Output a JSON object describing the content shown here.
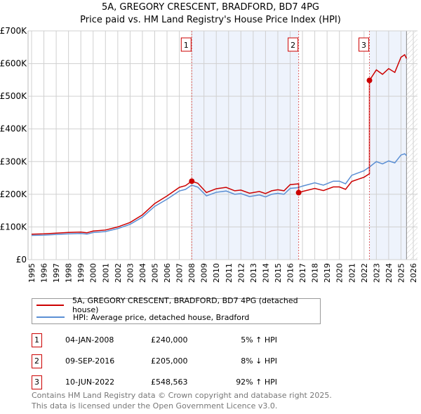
{
  "chart_data": {
    "type": "line",
    "title": "5A, GREGORY CRESCENT, BRADFORD, BD7 4PG",
    "subtitle": "Price paid vs. HM Land Registry's House Price Index (HPI)",
    "xlim": [
      1995,
      2026
    ],
    "ylim": [
      0,
      700000
    ],
    "y_ticks": [
      {
        "v": 0,
        "label": "£0"
      },
      {
        "v": 100000,
        "label": "£100K"
      },
      {
        "v": 200000,
        "label": "£200K"
      },
      {
        "v": 300000,
        "label": "£300K"
      },
      {
        "v": 400000,
        "label": "£400K"
      },
      {
        "v": 500000,
        "label": "£500K"
      },
      {
        "v": 600000,
        "label": "£600K"
      },
      {
        "v": 700000,
        "label": "£700K"
      }
    ],
    "x_ticks": [
      "1995",
      "1996",
      "1997",
      "1998",
      "1999",
      "2000",
      "2001",
      "2002",
      "2003",
      "2004",
      "2005",
      "2006",
      "2007",
      "2008",
      "2009",
      "2010",
      "2011",
      "2012",
      "2013",
      "2014",
      "2015",
      "2016",
      "2017",
      "2018",
      "2019",
      "2020",
      "2021",
      "2022",
      "2023",
      "2024",
      "2025",
      "2026"
    ],
    "grid": true,
    "colors": {
      "property": "#cc0000",
      "hpi": "#5b8fd4",
      "shade": "#eef3fc"
    },
    "hpi_series": {
      "name": "HPI: Average price, detached house, Bradford",
      "x": [
        1995,
        1996,
        1997,
        1998,
        1999,
        1999.5,
        2000,
        2001,
        2002,
        2003,
        2004,
        2005,
        2006,
        2007,
        2007.5,
        2008,
        2008.5,
        2009.2,
        2010,
        2010.8,
        2011.5,
        2012,
        2012.7,
        2013.5,
        2014,
        2014.5,
        2015,
        2015.5,
        2016,
        2016.6,
        2017,
        2018,
        2018.7,
        2019.5,
        2020,
        2020.5,
        2021,
        2021.5,
        2022,
        2022.5,
        2023,
        2023.5,
        2024,
        2024.5,
        2025,
        2025.3,
        2025.45
      ],
      "y": [
        74000,
        75000,
        77000,
        79000,
        80000,
        78000,
        83000,
        86000,
        95000,
        108000,
        130000,
        163000,
        185000,
        210000,
        215000,
        228000,
        222000,
        195000,
        206000,
        210000,
        200000,
        202000,
        193000,
        198000,
        192000,
        200000,
        203000,
        200000,
        218000,
        220000,
        225000,
        235000,
        228000,
        240000,
        240000,
        232000,
        258000,
        265000,
        272000,
        285000,
        300000,
        293000,
        302000,
        296000,
        320000,
        324000,
        318000
      ]
    },
    "property_series": {
      "name": "5A, GREGORY CRESCENT, BRADFORD, BD7 4PG (detached house)"
    },
    "sales": [
      {
        "n": "1",
        "x": 2008.01,
        "date": "04-JAN-2008",
        "price": 240000,
        "price_label": "£240,000",
        "hpi_label": "5% ↑ HPI"
      },
      {
        "n": "2",
        "x": 2016.69,
        "date": "09-SEP-2016",
        "price": 205000,
        "price_label": "£205,000",
        "hpi_label": "8% ↓ HPI"
      },
      {
        "n": "3",
        "x": 2022.44,
        "date": "10-JUN-2022",
        "price": 548563,
        "price_label": "£548,563",
        "hpi_label": "92% ↑ HPI"
      }
    ],
    "data_end": 2025.45
  },
  "footer": [
    "Contains HM Land Registry data © Crown copyright and database right 2025.",
    "This data is licensed under the Open Government Licence v3.0."
  ]
}
